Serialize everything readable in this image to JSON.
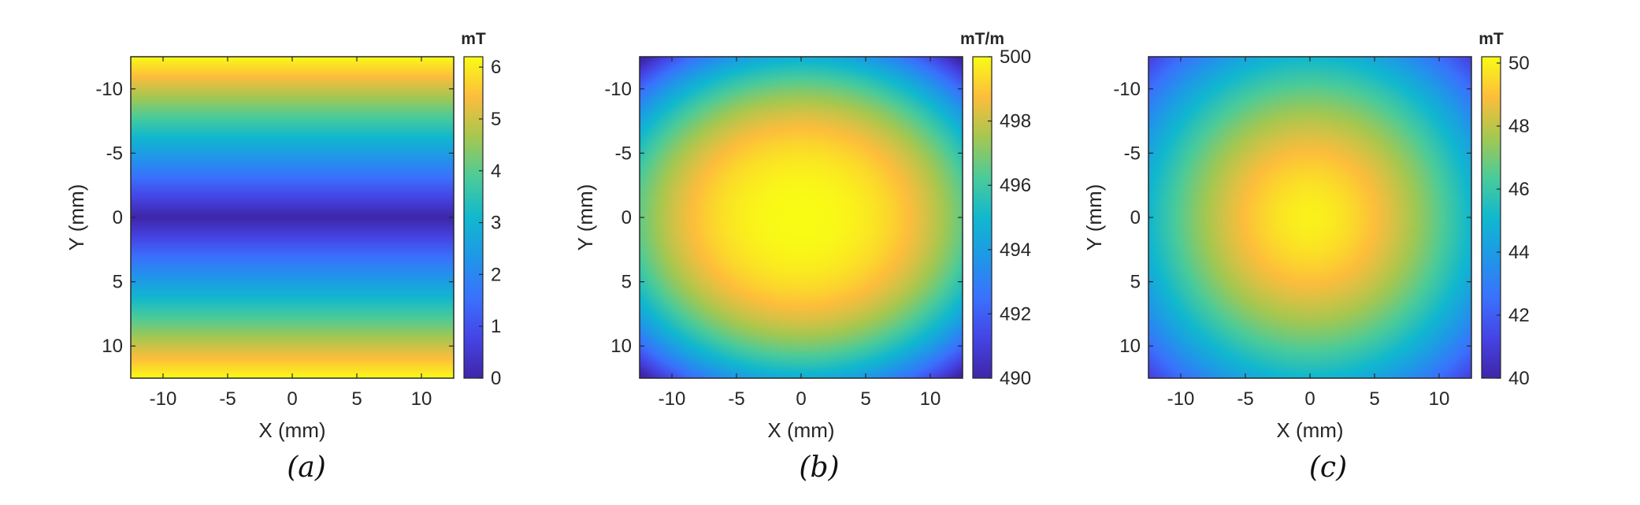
{
  "chart_data": [
    {
      "type": "heatmap",
      "caption": "(a)",
      "xlabel": "X (mm)",
      "ylabel": "Y (mm)",
      "xlim": [
        -12.5,
        12.5
      ],
      "ylim": [
        -12.5,
        12.5
      ],
      "y_reversed": true,
      "xticks": [
        -10,
        -5,
        0,
        5,
        10
      ],
      "yticks": [
        -10,
        -5,
        0,
        5,
        10
      ],
      "xtick_labels": [
        "-10",
        "-5",
        "0",
        "5",
        "10"
      ],
      "ytick_labels": [
        "-10",
        "-5",
        "0",
        "5",
        "10"
      ],
      "colorbar": {
        "unit": "mT",
        "range": [
          0,
          6.2
        ],
        "ticks": [
          0,
          1,
          2,
          3,
          4,
          5,
          6
        ],
        "tick_labels": [
          "0",
          "1",
          "2",
          "3",
          "4",
          "5",
          "6"
        ]
      },
      "colormap": "parula",
      "field": {
        "model": "abs_y",
        "description_values": {
          "center": 0,
          "edge": 6.2
        }
      }
    },
    {
      "type": "heatmap",
      "caption": "(b)",
      "xlabel": "X (mm)",
      "ylabel": "Y (mm)",
      "xlim": [
        -12.5,
        12.5
      ],
      "ylim": [
        -12.5,
        12.5
      ],
      "y_reversed": true,
      "xticks": [
        -10,
        -5,
        0,
        5,
        10
      ],
      "yticks": [
        -10,
        -5,
        0,
        5,
        10
      ],
      "xtick_labels": [
        "-10",
        "-5",
        "0",
        "5",
        "10"
      ],
      "ytick_labels": [
        "-10",
        "-5",
        "0",
        "5",
        "10"
      ],
      "colorbar": {
        "unit": "mT/m",
        "range": [
          490,
          500
        ],
        "ticks": [
          490,
          492,
          494,
          496,
          498,
          500
        ],
        "tick_labels": [
          "490",
          "492",
          "494",
          "496",
          "498",
          "500"
        ]
      },
      "colormap": "parula",
      "field": {
        "model": "ellipse",
        "center": 500,
        "corner": 490
      }
    },
    {
      "type": "heatmap",
      "caption": "(c)",
      "xlabel": "X (mm)",
      "ylabel": "Y (mm)",
      "xlim": [
        -12.5,
        12.5
      ],
      "ylim": [
        -12.5,
        12.5
      ],
      "y_reversed": true,
      "xticks": [
        -10,
        -5,
        0,
        5,
        10
      ],
      "yticks": [
        -10,
        -5,
        0,
        5,
        10
      ],
      "xtick_labels": [
        "-10",
        "-5",
        "0",
        "5",
        "10"
      ],
      "ytick_labels": [
        "-10",
        "-5",
        "0",
        "5",
        "10"
      ],
      "colorbar": {
        "unit": "mT",
        "range": [
          40,
          50.2
        ],
        "ticks": [
          40,
          42,
          44,
          46,
          48,
          50
        ],
        "tick_labels": [
          "40",
          "42",
          "44",
          "46",
          "48",
          "50"
        ]
      },
      "colormap": "parula",
      "field": {
        "model": "circle",
        "center": 50,
        "corner": 41
      }
    }
  ]
}
